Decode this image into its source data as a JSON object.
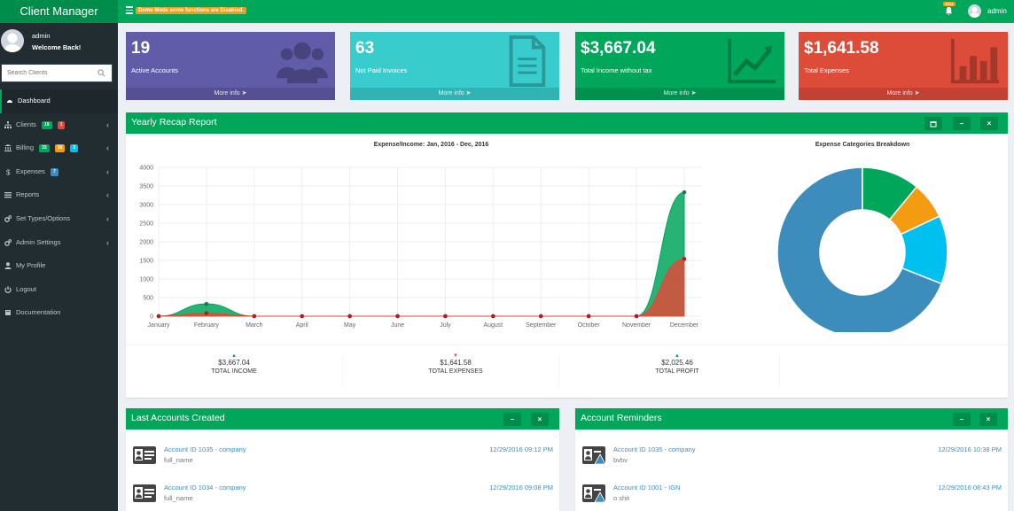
{
  "app": {
    "brand": "Client Manager",
    "demo_notice": "Demo Mode some functions are Disabled.",
    "notif_count": "1011",
    "user": "admin"
  },
  "sidebar": {
    "user_name": "admin",
    "welcome": "Welcome Back!",
    "search_placeholder": "Search Clients",
    "items": [
      {
        "label": "Dashboard",
        "icon": "dashboard-icon"
      },
      {
        "label": "Clients",
        "icon": "sitemap-icon",
        "badges": [
          "19",
          "1"
        ]
      },
      {
        "label": "Billing",
        "icon": "bank-icon",
        "badges": [
          "33",
          "58",
          "3"
        ]
      },
      {
        "label": "Expenses",
        "icon": "dollar-icon",
        "badges": [
          "7"
        ]
      },
      {
        "label": "Reports",
        "icon": "list-icon"
      },
      {
        "label": "Set Types/Options",
        "icon": "gears-icon"
      },
      {
        "label": "Admin Settings",
        "icon": "gears-icon"
      },
      {
        "label": "My Profile",
        "icon": "user-icon"
      },
      {
        "label": "Logout",
        "icon": "power-icon"
      },
      {
        "label": "Documentation",
        "icon": "book-icon"
      }
    ]
  },
  "info_boxes": [
    {
      "value": "19",
      "label": "Active Accounts",
      "more": "More info",
      "color": "#605ca8",
      "icon": "users-icon"
    },
    {
      "value": "63",
      "label": "Not Paid Invoices",
      "more": "More info",
      "color": "#39cccc",
      "icon": "document-icon"
    },
    {
      "value": "$3,667.04",
      "label": "Total Income without tax",
      "more": "More info",
      "color": "#00a65a",
      "icon": "line-chart-icon"
    },
    {
      "value": "$1,641.58",
      "label": "Total Expenses",
      "more": "More info",
      "color": "#dd4b39",
      "icon": "bar-chart-icon"
    }
  ],
  "recap": {
    "title": "Yearly Recap Report",
    "summary": [
      {
        "value": "$3,667.04",
        "label": "TOTAL INCOME",
        "trend": "up"
      },
      {
        "value": "$1,641.58",
        "label": "TOTAL EXPENSES",
        "trend": "down"
      },
      {
        "value": "$2,025.46",
        "label": "TOTAL PROFIT",
        "trend": "up"
      }
    ]
  },
  "chart_data": [
    {
      "type": "area",
      "title": "Expense/Income: Jan, 2016 - Dec, 2016",
      "categories": [
        "January",
        "February",
        "March",
        "April",
        "May",
        "June",
        "July",
        "August",
        "September",
        "October",
        "November",
        "December"
      ],
      "ylim": [
        0,
        4000
      ],
      "yticks": [
        0,
        500,
        1000,
        1500,
        2000,
        2500,
        3000,
        3500,
        4000
      ],
      "grid": true,
      "series": [
        {
          "values": [
            0,
            330,
            0,
            0,
            0,
            0,
            0,
            0,
            0,
            0,
            0,
            3330
          ],
          "color": "#00a65a"
        },
        {
          "values": [
            0,
            80,
            0,
            0,
            0,
            0,
            0,
            0,
            0,
            0,
            0,
            1540
          ],
          "color": "#dd4b39"
        }
      ]
    },
    {
      "type": "pie",
      "title": "Expense Categories Breakdown",
      "donut": true,
      "values": [
        69,
        11,
        7,
        13
      ],
      "colors": [
        "#3c8dbc",
        "#00a65a",
        "#f39c12",
        "#00c0ef"
      ]
    }
  ],
  "last_accounts": {
    "title": "Last Accounts Created",
    "rows": [
      {
        "link": "Account ID 1035 - company",
        "sub": "full_name",
        "date": "12/29/2016 09:12 PM"
      },
      {
        "link": "Account ID 1034 - company",
        "sub": "full_name",
        "date": "12/29/2016 09:08 PM"
      }
    ]
  },
  "reminders": {
    "title": "Account Reminders",
    "rows": [
      {
        "link": "Account ID 1035 - company",
        "sub": "bvbv",
        "date": "12/29/2016 10:38 PM"
      },
      {
        "link": "Account ID 1001 - IGN",
        "sub": "o shit",
        "date": "12/29/2016 08:43 PM"
      }
    ]
  }
}
